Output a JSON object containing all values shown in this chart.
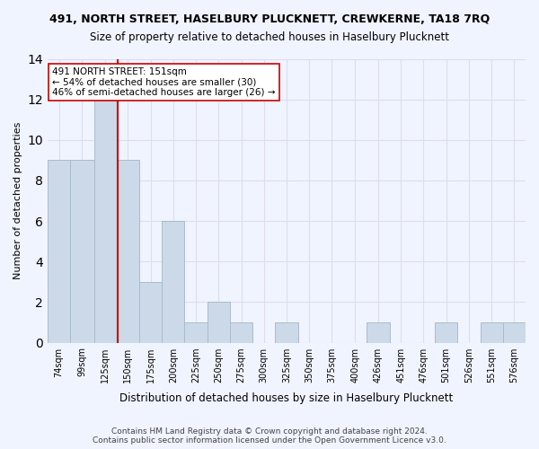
{
  "title1": "491, NORTH STREET, HASELBURY PLUCKNETT, CREWKERNE, TA18 7RQ",
  "title2": "Size of property relative to detached houses in Haselbury Plucknett",
  "xlabel": "Distribution of detached houses by size in Haselbury Plucknett",
  "ylabel": "Number of detached properties",
  "footer1": "Contains HM Land Registry data © Crown copyright and database right 2024.",
  "footer2": "Contains public sector information licensed under the Open Government Licence v3.0.",
  "bins": [
    "74sqm",
    "99sqm",
    "125sqm",
    "150sqm",
    "175sqm",
    "200sqm",
    "225sqm",
    "250sqm",
    "275sqm",
    "300sqm",
    "325sqm",
    "350sqm",
    "375sqm",
    "400sqm",
    "426sqm",
    "451sqm",
    "476sqm",
    "501sqm",
    "526sqm",
    "551sqm",
    "576sqm"
  ],
  "bin_edges": [
    74,
    99,
    125,
    150,
    175,
    200,
    225,
    250,
    275,
    300,
    325,
    350,
    375,
    400,
    426,
    451,
    476,
    501,
    526,
    551,
    576,
    601
  ],
  "values": [
    9,
    9,
    12,
    9,
    3,
    6,
    1,
    2,
    1,
    0,
    1,
    0,
    0,
    0,
    1,
    0,
    0,
    1,
    0,
    1,
    1
  ],
  "bar_color": "#ccd9e8",
  "bar_edge_color": "#aabbcc",
  "property_size": 151,
  "property_label": "491 NORTH STREET: 151sqm",
  "annotation_line1": "← 54% of detached houses are smaller (30)",
  "annotation_line2": "46% of semi-detached houses are larger (26) →",
  "vline_color": "#cc0000",
  "annotation_box_color": "#ffeeee",
  "annotation_box_edge": "#cc0000",
  "ylim": [
    0,
    14
  ],
  "yticks": [
    0,
    2,
    4,
    6,
    8,
    10,
    12,
    14
  ],
  "grid_color": "#ddddee",
  "bg_color": "#f0f4ff"
}
